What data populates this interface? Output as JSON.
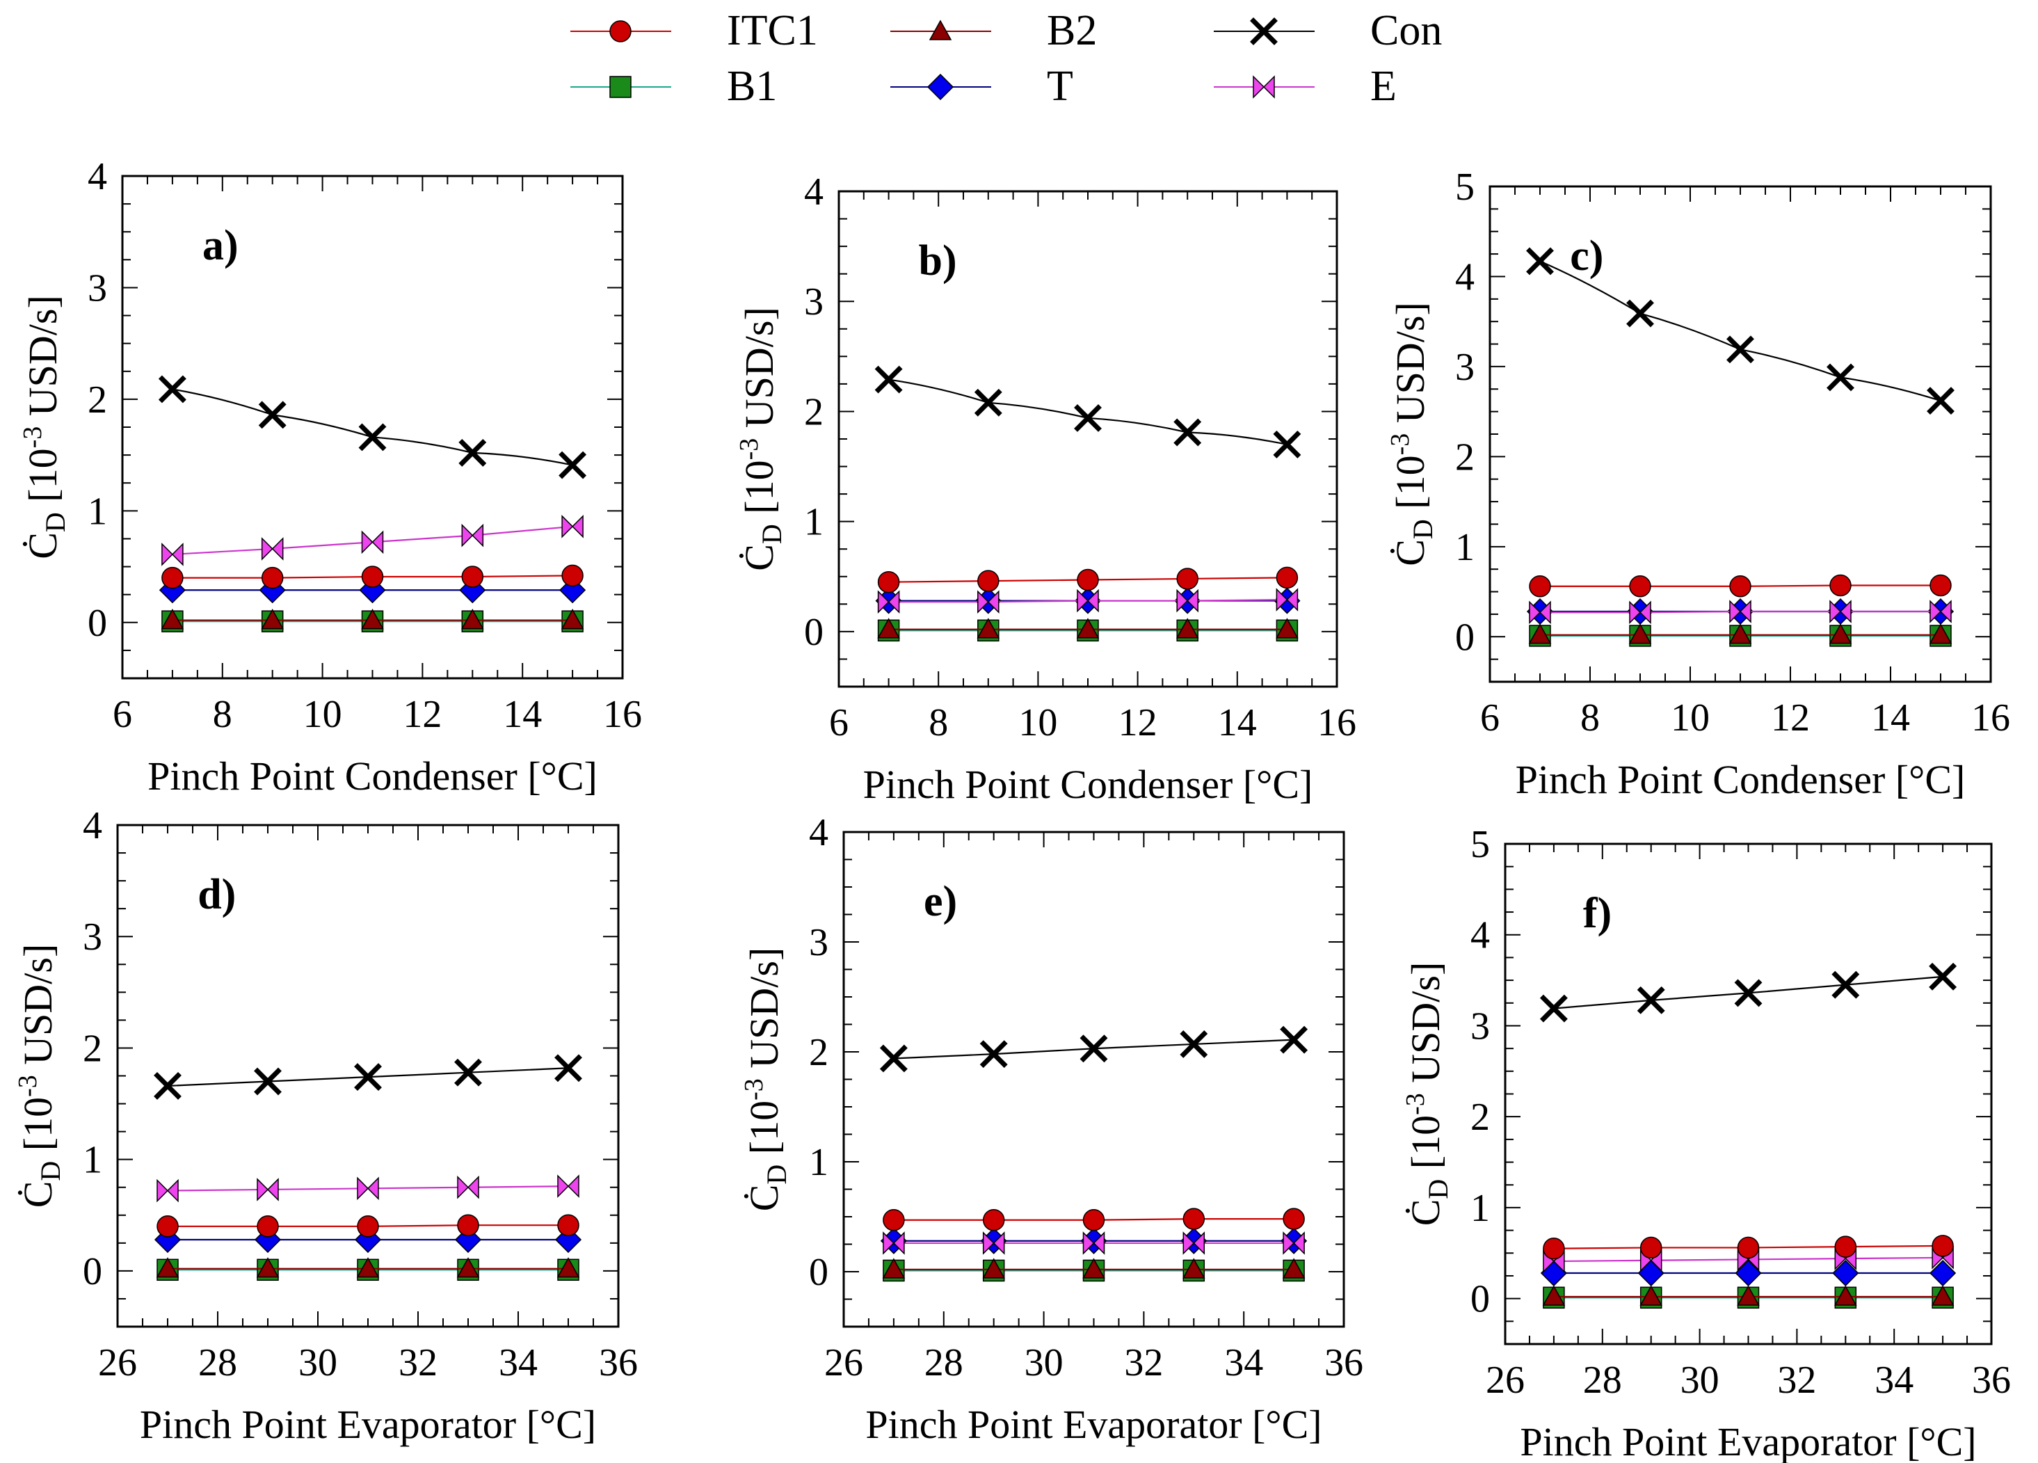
{
  "legend": [
    {
      "key": "ITC1",
      "label": "ITC1",
      "color": "#cc0000",
      "line": "#cc0000",
      "marker": "circle"
    },
    {
      "key": "B2",
      "label": "B2",
      "color": "#8b0000",
      "line": "#8b0000",
      "marker": "triangle"
    },
    {
      "key": "Con",
      "label": "Con",
      "color": "#000000",
      "line": "#000000",
      "marker": "x"
    },
    {
      "key": "B1",
      "label": "B1",
      "color": "#1a8a1a",
      "line": "#1aa88a",
      "marker": "square"
    },
    {
      "key": "T",
      "label": "T",
      "color": "#0000ee",
      "line": "#000080",
      "marker": "diamond"
    },
    {
      "key": "E",
      "label": "E",
      "color": "#ee44ee",
      "line": "#cc33cc",
      "marker": "bowtie"
    }
  ],
  "chart_data": [
    {
      "type": "line",
      "panel_label": "a)",
      "xlabel": "Pinch Point Condenser [°C]",
      "ylabel": "Ċ",
      "ylabel_sub": "D",
      "ylabel_unit_pre": "[10",
      "ylabel_exp": "-3",
      "ylabel_unit_post": " USD/s]",
      "xlim": [
        6,
        16
      ],
      "ylim": [
        -0.5,
        4
      ],
      "xticks": [
        "6",
        "8",
        "10",
        "12",
        "14",
        "16"
      ],
      "yticks": [
        "0",
        "1",
        "2",
        "3",
        "4"
      ],
      "x": [
        7,
        9,
        11,
        13,
        15
      ],
      "series": [
        {
          "key": "Con",
          "values": [
            2.09,
            1.86,
            1.66,
            1.52,
            1.41
          ]
        },
        {
          "key": "E",
          "values": [
            0.61,
            0.66,
            0.72,
            0.78,
            0.86
          ]
        },
        {
          "key": "ITC1",
          "values": [
            0.4,
            0.4,
            0.41,
            0.41,
            0.42
          ]
        },
        {
          "key": "T",
          "values": [
            0.29,
            0.29,
            0.29,
            0.29,
            0.29
          ]
        },
        {
          "key": "B2",
          "values": [
            0.02,
            0.02,
            0.02,
            0.02,
            0.02
          ]
        },
        {
          "key": "B1",
          "values": [
            0.01,
            0.01,
            0.01,
            0.01,
            0.01
          ]
        }
      ]
    },
    {
      "type": "line",
      "panel_label": "b)",
      "xlabel": "Pinch Point Condenser [°C]",
      "ylabel": "Ċ",
      "ylabel_sub": "D",
      "ylabel_unit_pre": "[10",
      "ylabel_exp": "-3",
      "ylabel_unit_post": " USD/s]",
      "xlim": [
        6,
        16
      ],
      "ylim": [
        -0.5,
        4
      ],
      "xticks": [
        "6",
        "8",
        "10",
        "12",
        "14",
        "16"
      ],
      "yticks": [
        "0",
        "1",
        "2",
        "3",
        "4"
      ],
      "x": [
        7,
        9,
        11,
        13,
        15
      ],
      "series": [
        {
          "key": "Con",
          "values": [
            2.29,
            2.08,
            1.94,
            1.81,
            1.7
          ]
        },
        {
          "key": "ITC1",
          "values": [
            0.45,
            0.46,
            0.47,
            0.48,
            0.49
          ]
        },
        {
          "key": "E",
          "values": [
            0.27,
            0.27,
            0.28,
            0.28,
            0.29
          ]
        },
        {
          "key": "T",
          "values": [
            0.28,
            0.28,
            0.28,
            0.28,
            0.28
          ]
        },
        {
          "key": "B2",
          "values": [
            0.02,
            0.02,
            0.02,
            0.02,
            0.02
          ]
        },
        {
          "key": "B1",
          "values": [
            0.01,
            0.01,
            0.01,
            0.01,
            0.01
          ]
        }
      ]
    },
    {
      "type": "line",
      "panel_label": "c)",
      "xlabel": "Pinch Point Condenser [°C]",
      "ylabel": "Ċ",
      "ylabel_sub": "D",
      "ylabel_unit_pre": "[10",
      "ylabel_exp": "-3",
      "ylabel_unit_post": " USD/s]",
      "xlim": [
        6,
        16
      ],
      "ylim": [
        -0.5,
        5
      ],
      "xticks": [
        "6",
        "8",
        "10",
        "12",
        "14",
        "16"
      ],
      "yticks": [
        "0",
        "1",
        "2",
        "3",
        "4",
        "5"
      ],
      "x": [
        7,
        9,
        11,
        13,
        15
      ],
      "series": [
        {
          "key": "Con",
          "values": [
            4.17,
            3.59,
            3.19,
            2.88,
            2.62
          ]
        },
        {
          "key": "ITC1",
          "values": [
            0.56,
            0.56,
            0.56,
            0.57,
            0.57
          ]
        },
        {
          "key": "E",
          "values": [
            0.27,
            0.27,
            0.28,
            0.28,
            0.28
          ]
        },
        {
          "key": "T",
          "values": [
            0.28,
            0.28,
            0.28,
            0.28,
            0.28
          ]
        },
        {
          "key": "B2",
          "values": [
            0.02,
            0.02,
            0.02,
            0.02,
            0.02
          ]
        },
        {
          "key": "B1",
          "values": [
            0.01,
            0.01,
            0.01,
            0.01,
            0.01
          ]
        }
      ]
    },
    {
      "type": "line",
      "panel_label": "d)",
      "xlabel": "Pinch Point Evaporator [°C]",
      "ylabel": "Ċ",
      "ylabel_sub": "D",
      "ylabel_unit_pre": "[10",
      "ylabel_exp": "-3",
      "ylabel_unit_post": " USD/s]",
      "xlim": [
        26,
        36
      ],
      "ylim": [
        -0.5,
        4
      ],
      "xticks": [
        "26",
        "28",
        "30",
        "32",
        "34",
        "36"
      ],
      "yticks": [
        "0",
        "1",
        "2",
        "3",
        "4"
      ],
      "x": [
        27,
        29,
        31,
        33,
        35
      ],
      "series": [
        {
          "key": "Con",
          "values": [
            1.66,
            1.7,
            1.74,
            1.78,
            1.82
          ]
        },
        {
          "key": "E",
          "values": [
            0.72,
            0.73,
            0.74,
            0.75,
            0.76
          ]
        },
        {
          "key": "ITC1",
          "values": [
            0.4,
            0.4,
            0.4,
            0.41,
            0.41
          ]
        },
        {
          "key": "T",
          "values": [
            0.28,
            0.28,
            0.28,
            0.28,
            0.28
          ]
        },
        {
          "key": "B2",
          "values": [
            0.02,
            0.02,
            0.02,
            0.02,
            0.02
          ]
        },
        {
          "key": "B1",
          "values": [
            0.01,
            0.01,
            0.01,
            0.01,
            0.01
          ]
        }
      ]
    },
    {
      "type": "line",
      "panel_label": "e)",
      "xlabel": "Pinch Point Evaporator [°C]",
      "ylabel": "Ċ",
      "ylabel_sub": "D",
      "ylabel_unit_pre": "[10",
      "ylabel_exp": "-3",
      "ylabel_unit_post": " USD/s]",
      "xlim": [
        26,
        36
      ],
      "ylim": [
        -0.5,
        4
      ],
      "xticks": [
        "26",
        "28",
        "30",
        "32",
        "34",
        "36"
      ],
      "yticks": [
        "0",
        "1",
        "2",
        "3",
        "4"
      ],
      "x": [
        27,
        29,
        31,
        33,
        35
      ],
      "series": [
        {
          "key": "Con",
          "values": [
            1.94,
            1.98,
            2.03,
            2.07,
            2.11
          ]
        },
        {
          "key": "ITC1",
          "values": [
            0.47,
            0.47,
            0.47,
            0.48,
            0.48
          ]
        },
        {
          "key": "E",
          "values": [
            0.26,
            0.26,
            0.26,
            0.26,
            0.26
          ]
        },
        {
          "key": "T",
          "values": [
            0.28,
            0.28,
            0.28,
            0.28,
            0.28
          ]
        },
        {
          "key": "B2",
          "values": [
            0.02,
            0.02,
            0.02,
            0.02,
            0.02
          ]
        },
        {
          "key": "B1",
          "values": [
            0.01,
            0.01,
            0.01,
            0.01,
            0.01
          ]
        }
      ]
    },
    {
      "type": "line",
      "panel_label": "f)",
      "xlabel": "Pinch Point Evaporator [°C]",
      "ylabel": "Ċ",
      "ylabel_sub": "D",
      "ylabel_unit_pre": "[10",
      "ylabel_exp": "-3",
      "ylabel_unit_post": " USD/s]",
      "xlim": [
        26,
        36
      ],
      "ylim": [
        -0.5,
        5
      ],
      "xticks": [
        "26",
        "28",
        "30",
        "32",
        "34",
        "36"
      ],
      "yticks": [
        "0",
        "1",
        "2",
        "3",
        "4",
        "5"
      ],
      "x": [
        27,
        29,
        31,
        33,
        35
      ],
      "series": [
        {
          "key": "Con",
          "values": [
            3.19,
            3.28,
            3.36,
            3.45,
            3.54
          ]
        },
        {
          "key": "ITC1",
          "values": [
            0.55,
            0.56,
            0.56,
            0.57,
            0.58
          ]
        },
        {
          "key": "E",
          "values": [
            0.41,
            0.42,
            0.43,
            0.44,
            0.45
          ]
        },
        {
          "key": "T",
          "values": [
            0.28,
            0.28,
            0.28,
            0.28,
            0.28
          ]
        },
        {
          "key": "B2",
          "values": [
            0.02,
            0.02,
            0.02,
            0.02,
            0.02
          ]
        },
        {
          "key": "B1",
          "values": [
            0.01,
            0.01,
            0.01,
            0.01,
            0.01
          ]
        }
      ]
    }
  ]
}
